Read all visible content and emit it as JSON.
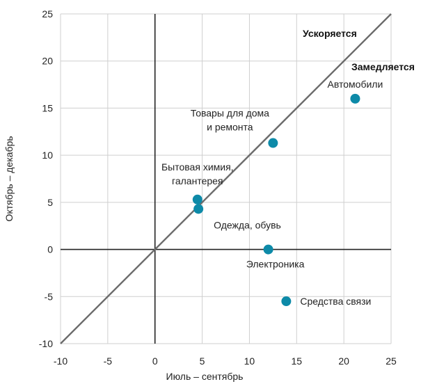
{
  "chart_data": {
    "type": "scatter",
    "title": "",
    "xlabel": "Июль – сентябрь",
    "ylabel": "Октябрь – декабрь",
    "xlim": [
      -10,
      25
    ],
    "ylim": [
      -10,
      25
    ],
    "xticks": [
      -10,
      -5,
      0,
      5,
      10,
      15,
      20,
      25
    ],
    "yticks": [
      -10,
      -5,
      0,
      5,
      10,
      15,
      20,
      25
    ],
    "grid": true,
    "diagonal": {
      "from": [
        -10,
        -10
      ],
      "to": [
        25,
        25
      ]
    },
    "region_labels": [
      {
        "text": "Ускоряется"
      },
      {
        "text": "Замедляется"
      }
    ],
    "points": [
      {
        "label": [
          "Автомобили"
        ],
        "x": 21.2,
        "y": 16.0
      },
      {
        "label": [
          "Товары для дома",
          "и ремонта"
        ],
        "x": 12.5,
        "y": 11.3
      },
      {
        "label": [
          "Бытовая химия,",
          "галантерея"
        ],
        "x": 4.5,
        "y": 5.3
      },
      {
        "label": [
          "Одежда, обувь"
        ],
        "x": 4.6,
        "y": 4.3
      },
      {
        "label": [
          "Электроника"
        ],
        "x": 12.0,
        "y": 0.0
      },
      {
        "label": [
          "Средства связи"
        ],
        "x": 13.9,
        "y": -5.5
      }
    ],
    "colors": {
      "point": "#0d8aa8",
      "diagonal": "#6b6b6b",
      "grid": "#cfcfcf",
      "axis": "#222222"
    }
  }
}
